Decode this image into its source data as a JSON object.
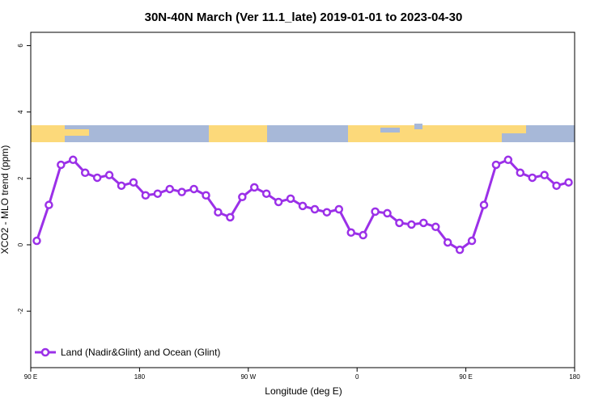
{
  "chart_data": {
    "type": "line",
    "title": "30N-40N March (Ver 11.1_late)   2019-01-01 to 2023-04-30",
    "x_label": "Longitude (deg E)",
    "y_label": "XCO2 - MLO trend (ppm)",
    "x": [
      95,
      105,
      115,
      125,
      135,
      145,
      155,
      165,
      175,
      185,
      195,
      205,
      215,
      225,
      235,
      245,
      255,
      265,
      275,
      285,
      295,
      305,
      315,
      325,
      335,
      345,
      355,
      365,
      375,
      385,
      395,
      405,
      415,
      425,
      435,
      445,
      455,
      465,
      475,
      485,
      495,
      505,
      515,
      525,
      535
    ],
    "series": [
      {
        "name": "Land (Nadir&Glint) and Ocean (Glint)",
        "color": "#9b30e8",
        "values": [
          0.12,
          1.2,
          2.41,
          2.56,
          2.17,
          2.02,
          2.1,
          1.78,
          1.88,
          1.49,
          1.54,
          1.68,
          1.59,
          1.68,
          1.49,
          0.98,
          0.83,
          1.44,
          1.73,
          1.54,
          1.29,
          1.39,
          1.17,
          1.07,
          0.98,
          1.07,
          0.37,
          0.29,
          1.0,
          0.95,
          0.66,
          0.61,
          0.66,
          0.54,
          0.07,
          -0.15,
          0.12,
          1.2,
          2.41,
          2.56,
          2.17,
          2.02,
          2.1,
          1.78,
          1.88
        ]
      }
    ],
    "xlim": [
      90,
      540
    ],
    "xticks": [
      {
        "value": 90,
        "label": "90 E"
      },
      180,
      {
        "value": 270,
        "label": "90 W"
      },
      {
        "value": 360,
        "label": "0"
      },
      {
        "value": 450,
        "label": "90 E"
      },
      {
        "value": 540,
        "label": "180"
      }
    ],
    "ylim": [
      -3.7,
      6.4
    ],
    "yticks": [
      -2,
      0,
      2,
      4,
      6
    ],
    "legend": "bottom-left"
  }
}
